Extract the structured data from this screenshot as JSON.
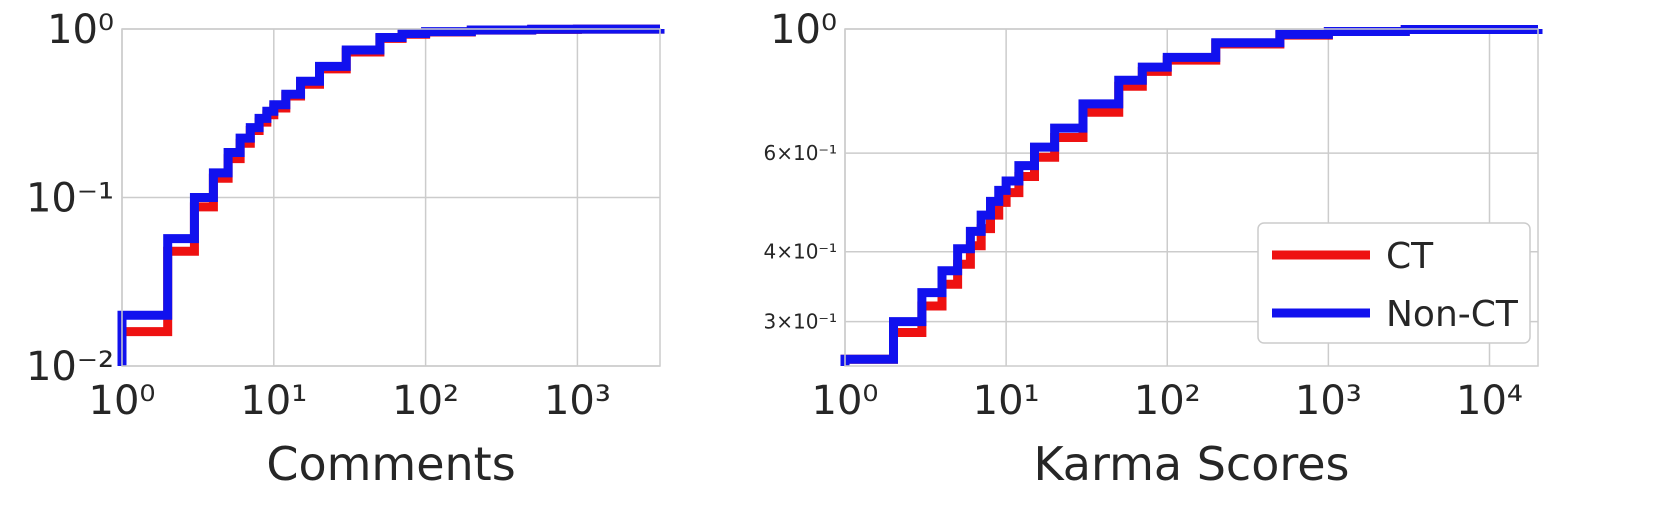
{
  "chart_data": [
    {
      "type": "line",
      "xlabel": "Comments",
      "ylabel": "",
      "xscale": "log",
      "yscale": "log",
      "xlim": [
        1,
        3500
      ],
      "ylim": [
        0.01,
        1
      ],
      "xticks": [
        {
          "v": 1,
          "label": "10⁰"
        },
        {
          "v": 10,
          "label": "10¹"
        },
        {
          "v": 100,
          "label": "10²"
        },
        {
          "v": 1000,
          "label": "10³"
        }
      ],
      "yticks": [
        {
          "v": 0.01,
          "label": "10⁻²"
        },
        {
          "v": 0.1,
          "label": "10⁻¹"
        },
        {
          "v": 1,
          "label": "10⁰"
        }
      ],
      "series": [
        {
          "color": "#ee1111",
          "x": [
            1,
            2,
            3,
            4,
            5,
            6,
            7,
            8,
            9,
            10,
            12,
            15,
            20,
            30,
            50,
            70,
            100,
            200,
            500,
            1000,
            3500
          ],
          "y": [
            0.016,
            0.048,
            0.088,
            0.13,
            0.17,
            0.21,
            0.25,
            0.28,
            0.31,
            0.34,
            0.4,
            0.47,
            0.58,
            0.73,
            0.88,
            0.93,
            0.96,
            0.985,
            0.995,
            0.998,
            1.0
          ]
        },
        {
          "color": "#1111ee",
          "x": [
            1,
            2,
            3,
            4,
            5,
            6,
            7,
            8,
            9,
            10,
            12,
            15,
            20,
            30,
            50,
            70,
            100,
            200,
            500,
            1000,
            3500
          ],
          "y": [
            0.02,
            0.057,
            0.1,
            0.14,
            0.185,
            0.225,
            0.26,
            0.295,
            0.325,
            0.355,
            0.41,
            0.49,
            0.6,
            0.75,
            0.89,
            0.94,
            0.965,
            0.987,
            0.996,
            0.998,
            1.0
          ]
        }
      ]
    },
    {
      "type": "line",
      "xlabel": "Karma Scores",
      "ylabel": "",
      "xscale": "log",
      "yscale": "log",
      "xlim": [
        1,
        20000
      ],
      "ylim": [
        0.25,
        1
      ],
      "xticks": [
        {
          "v": 1,
          "label": "10⁰"
        },
        {
          "v": 10,
          "label": "10¹"
        },
        {
          "v": 100,
          "label": "10²"
        },
        {
          "v": 1000,
          "label": "10³"
        },
        {
          "v": 10000,
          "label": "10⁴"
        }
      ],
      "yticks": [
        {
          "v": 0.3,
          "label": "3×10⁻¹",
          "minor": true
        },
        {
          "v": 0.4,
          "label": "4×10⁻¹",
          "minor": true
        },
        {
          "v": 0.6,
          "label": "6×10⁻¹",
          "minor": true
        },
        {
          "v": 1,
          "label": "10⁰"
        }
      ],
      "legend": {
        "position": "lower-right",
        "entries": [
          "CT",
          "Non-CT"
        ]
      },
      "series": [
        {
          "name": "CT",
          "color": "#ee1111",
          "x": [
            1,
            2,
            3,
            4,
            5,
            6,
            7,
            8,
            9,
            10,
            12,
            15,
            20,
            30,
            50,
            70,
            100,
            200,
            500,
            1000,
            3000,
            20000
          ],
          "y": [
            0.257,
            0.287,
            0.32,
            0.35,
            0.38,
            0.41,
            0.44,
            0.465,
            0.49,
            0.51,
            0.545,
            0.59,
            0.64,
            0.71,
            0.79,
            0.84,
            0.88,
            0.94,
            0.975,
            0.99,
            0.998,
            1.0
          ]
        },
        {
          "name": "Non-CT",
          "color": "#1111ee",
          "x": [
            1,
            2,
            3,
            4,
            5,
            6,
            7,
            8,
            9,
            10,
            12,
            15,
            20,
            30,
            50,
            70,
            100,
            200,
            500,
            1000,
            3000,
            20000
          ],
          "y": [
            0.257,
            0.3,
            0.338,
            0.37,
            0.405,
            0.435,
            0.465,
            0.492,
            0.515,
            0.535,
            0.57,
            0.615,
            0.665,
            0.735,
            0.81,
            0.855,
            0.89,
            0.945,
            0.978,
            0.99,
            0.998,
            1.0
          ]
        }
      ]
    }
  ]
}
